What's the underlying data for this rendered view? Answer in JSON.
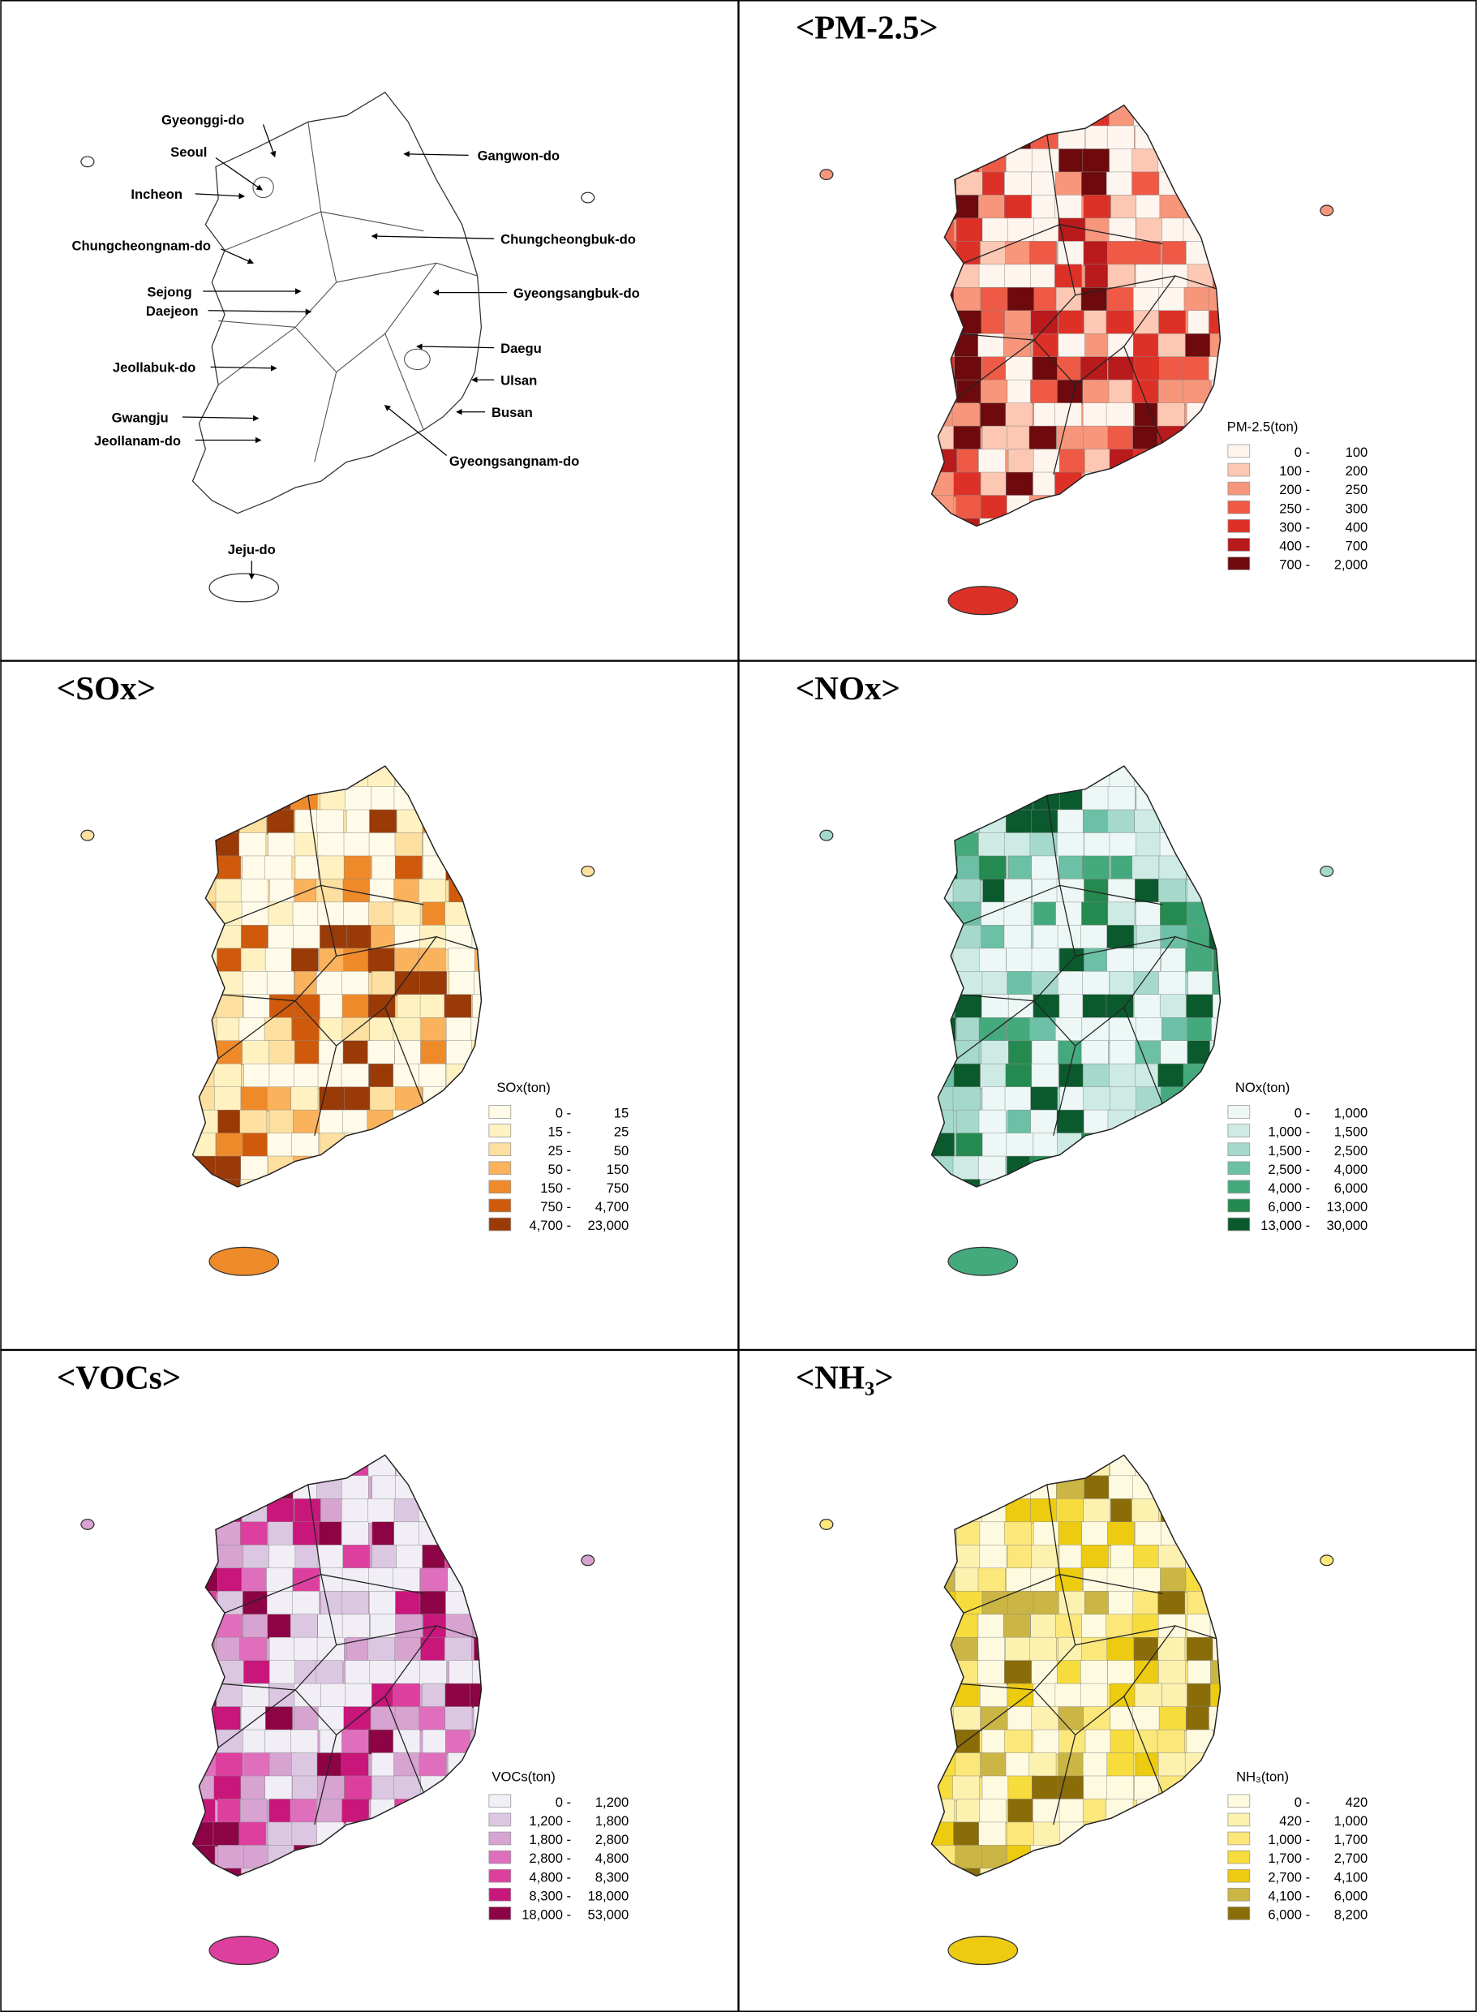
{
  "panels": [
    {
      "labels": [
        "Gyeonggi-do",
        "Seoul",
        "Incheon",
        "Chungcheongnam-do",
        "Sejong",
        "Daejeon",
        "Jeollabuk-do",
        "Gwangju",
        "Jeollanam-do",
        "Jeju-do",
        "Gangwon-do",
        "Chungcheongbuk-do",
        "Gyeongsangbuk-do",
        "Daegu",
        "Ulsan",
        "Busan",
        "Gyeongsangnam-do"
      ]
    },
    {
      "title": "<PM-2.5>",
      "legend": {
        "title": "PM-2.5(ton)",
        "rows": [
          {
            "from": "0 -",
            "to": "100",
            "color": "#fdf5ee"
          },
          {
            "from": "100 -",
            "to": "200",
            "color": "#fcc7b3"
          },
          {
            "from": "200 -",
            "to": "250",
            "color": "#f7967a"
          },
          {
            "from": "250 -",
            "to": "300",
            "color": "#ee5a45"
          },
          {
            "from": "300 -",
            "to": "400",
            "color": "#dd3128"
          },
          {
            "from": "400 -",
            "to": "700",
            "color": "#b91a1c"
          },
          {
            "from": "700 -",
            "to": "2,000",
            "color": "#6e0a0d"
          }
        ]
      }
    },
    {
      "title": "<SOx>",
      "legend": {
        "title": "SOx(ton)",
        "rows": [
          {
            "from": "0 -",
            "to": "15",
            "color": "#fffbe8"
          },
          {
            "from": "15 -",
            "to": "25",
            "color": "#fff2c0"
          },
          {
            "from": "25 -",
            "to": "50",
            "color": "#fde0a0"
          },
          {
            "from": "50 -",
            "to": "150",
            "color": "#fbb25c"
          },
          {
            "from": "150 -",
            "to": "750",
            "color": "#ef8a2a"
          },
          {
            "from": "750 -",
            "to": "4,700",
            "color": "#cf5a0c"
          },
          {
            "from": "4,700 -",
            "to": "23,000",
            "color": "#9a3a06"
          }
        ]
      }
    },
    {
      "title": "<NOx>",
      "legend": {
        "title": "NOx(ton)",
        "rows": [
          {
            "from": "0 -",
            "to": "1,000",
            "color": "#edf8f6"
          },
          {
            "from": "1,000 -",
            "to": "1,500",
            "color": "#cdebe4"
          },
          {
            "from": "1,500 -",
            "to": "2,500",
            "color": "#a5d9cc"
          },
          {
            "from": "2,500 -",
            "to": "4,000",
            "color": "#6cc0a5"
          },
          {
            "from": "4,000 -",
            "to": "6,000",
            "color": "#45a97e"
          },
          {
            "from": "6,000 -",
            "to": "13,000",
            "color": "#258a4f"
          },
          {
            "from": "13,000 -",
            "to": "30,000",
            "color": "#0b5a2e"
          }
        ]
      }
    },
    {
      "title": "<VOCs>",
      "legend": {
        "title": "VOCs(ton)",
        "rows": [
          {
            "from": "0 -",
            "to": "1,200",
            "color": "#f1eef6"
          },
          {
            "from": "1,200 -",
            "to": "1,800",
            "color": "#dcc7e2"
          },
          {
            "from": "1,800 -",
            "to": "2,800",
            "color": "#d7a3d1"
          },
          {
            "from": "2,800 -",
            "to": "4,800",
            "color": "#df6fbd"
          },
          {
            "from": "4,800 -",
            "to": "8,300",
            "color": "#dd3f9e"
          },
          {
            "from": "8,300 -",
            "to": "18,000",
            "color": "#c9167b"
          },
          {
            "from": "18,000 -",
            "to": "53,000",
            "color": "#8c0445"
          }
        ]
      }
    },
    {
      "title": "<NH₃>",
      "legend": {
        "title": "NH₃(ton)",
        "rows": [
          {
            "from": "0 -",
            "to": "420",
            "color": "#fefae0"
          },
          {
            "from": "420 -",
            "to": "1,000",
            "color": "#fdf1b0"
          },
          {
            "from": "1,000 -",
            "to": "1,700",
            "color": "#fbe77a"
          },
          {
            "from": "1,700 -",
            "to": "2,700",
            "color": "#f6dc3c"
          },
          {
            "from": "2,700 -",
            "to": "4,100",
            "color": "#eccb10"
          },
          {
            "from": "4,100 -",
            "to": "6,000",
            "color": "#cbb545"
          },
          {
            "from": "6,000 -",
            "to": "8,200",
            "color": "#8a6d08"
          }
        ]
      }
    }
  ]
}
